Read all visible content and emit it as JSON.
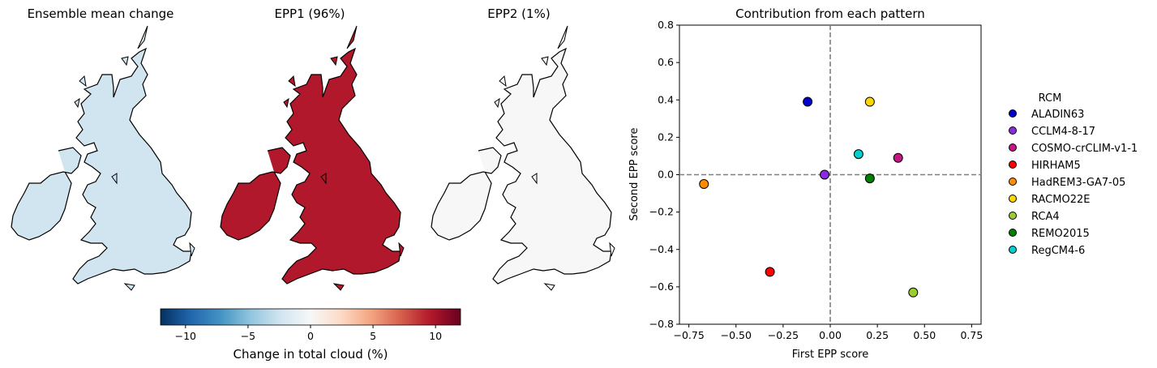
{
  "maps": [
    {
      "title": "Ensemble mean change",
      "value": -1.5
    },
    {
      "title": "EPP1 (96%)",
      "value": 10.5
    },
    {
      "title": "EPP2 (1%)",
      "value": 0.6
    }
  ],
  "colorbar": {
    "label": "Change in total cloud (%)",
    "range": [
      -12,
      12
    ],
    "ticks": [
      -10,
      -5,
      0,
      5,
      10
    ],
    "tick_labels": [
      "−10",
      "−5",
      "0",
      "5",
      "10"
    ],
    "colormap": "RdBu_r"
  },
  "chart_data": {
    "type": "scatter",
    "title": "Contribution from each pattern",
    "xlabel": "First EPP score",
    "ylabel": "Second EPP score",
    "xlim": [
      -0.8,
      0.8
    ],
    "ylim": [
      -0.8,
      0.8
    ],
    "xticks": [
      -0.75,
      -0.5,
      -0.25,
      0.0,
      0.25,
      0.5,
      0.75
    ],
    "xtick_labels": [
      "−0.75",
      "−0.50",
      "−0.25",
      "0.00",
      "0.25",
      "0.50",
      "0.75"
    ],
    "yticks": [
      -0.8,
      -0.6,
      -0.4,
      -0.2,
      0.0,
      0.2,
      0.4,
      0.6,
      0.8
    ],
    "ytick_labels": [
      "−0.8",
      "−0.6",
      "−0.4",
      "−0.2",
      "0.0",
      "0.2",
      "0.4",
      "0.6",
      "0.8"
    ],
    "reference_lines": {
      "x": 0,
      "y": 0,
      "style": "dashed"
    },
    "legend": {
      "title": "RCM",
      "placement": "right outside"
    },
    "series": [
      {
        "name": "ALADIN63",
        "x": -0.12,
        "y": 0.39,
        "color": "#0000cd"
      },
      {
        "name": "CCLM4-8-17",
        "x": -0.03,
        "y": 0.0,
        "color": "#8a2be2"
      },
      {
        "name": "COSMO-crCLIM-v1-1",
        "x": 0.36,
        "y": 0.09,
        "color": "#c71585"
      },
      {
        "name": "HIRHAM5",
        "x": -0.32,
        "y": -0.52,
        "color": "#ff0000"
      },
      {
        "name": "HadREM3-GA7-05",
        "x": -0.67,
        "y": -0.05,
        "color": "#ff8c00"
      },
      {
        "name": "RACMO22E",
        "x": 0.21,
        "y": 0.39,
        "color": "#ffd700"
      },
      {
        "name": "RCA4",
        "x": 0.44,
        "y": -0.63,
        "color": "#9acd32"
      },
      {
        "name": "REMO2015",
        "x": 0.21,
        "y": -0.02,
        "color": "#008000"
      },
      {
        "name": "RegCM4-6",
        "x": 0.15,
        "y": 0.11,
        "color": "#00ced1"
      }
    ]
  }
}
